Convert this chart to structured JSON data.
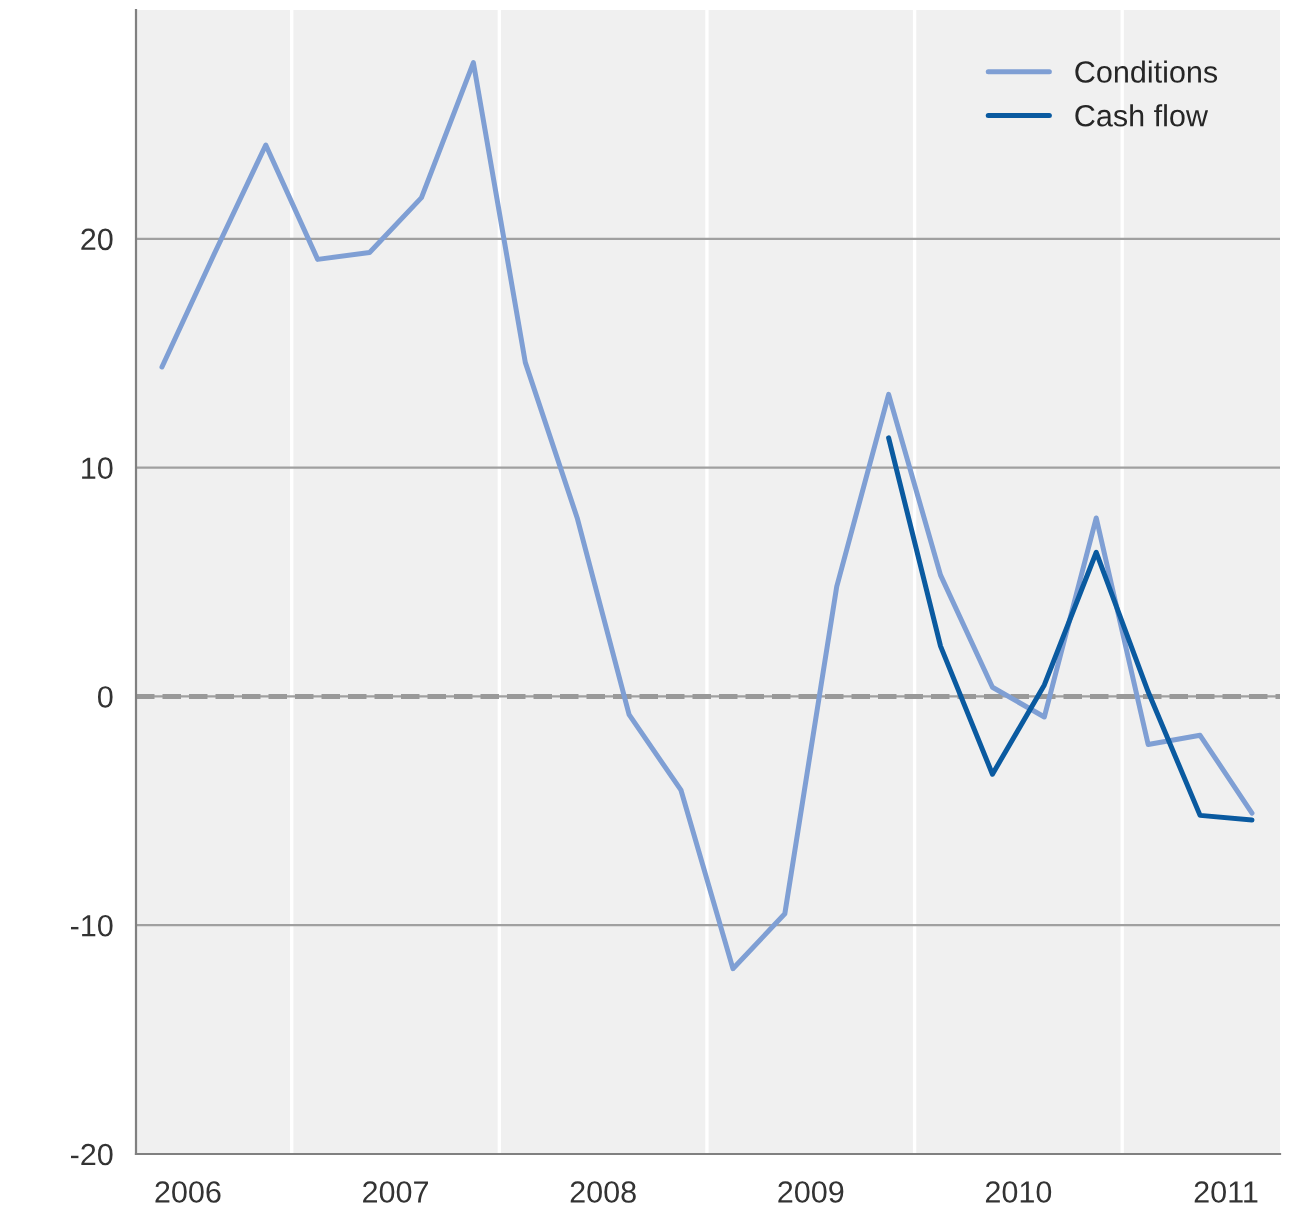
{
  "chart_data": {
    "type": "line",
    "x": [
      2006.375,
      2006.625,
      2006.875,
      2007.125,
      2007.375,
      2007.625,
      2007.875,
      2008.125,
      2008.375,
      2008.625,
      2008.875,
      2009.125,
      2009.375,
      2009.625,
      2009.875,
      2010.125,
      2010.375,
      2010.625,
      2010.875,
      2011.125,
      2011.375,
      2011.625
    ],
    "series": [
      {
        "name": "Conditions",
        "color": "#7f9fd4",
        "values": [
          14.4,
          19.3,
          24.1,
          19.1,
          19.4,
          21.8,
          27.7,
          14.6,
          7.8,
          -0.8,
          -4.1,
          -11.9,
          -9.5,
          4.8,
          13.2,
          5.3,
          0.4,
          -0.9,
          7.8,
          -2.1,
          -1.7,
          -5.1
        ]
      },
      {
        "name": "Cash flow",
        "color": "#0a5aa0",
        "values": [
          null,
          null,
          null,
          null,
          null,
          null,
          null,
          null,
          null,
          null,
          null,
          null,
          null,
          null,
          11.3,
          2.2,
          -3.4,
          0.5,
          6.3,
          0.2,
          -5.2,
          -5.4
        ]
      }
    ],
    "xlim": [
      2006.25,
      2011.76
    ],
    "xticks": [
      {
        "value": 2006.5,
        "label": "2006"
      },
      {
        "value": 2007,
        "label": null
      },
      {
        "value": 2007.5,
        "label": "2007"
      },
      {
        "value": 2008,
        "label": null
      },
      {
        "value": 2008.5,
        "label": "2008"
      },
      {
        "value": 2009,
        "label": null
      },
      {
        "value": 2009.5,
        "label": "2009"
      },
      {
        "value": 2010,
        "label": null
      },
      {
        "value": 2010.5,
        "label": "2010"
      },
      {
        "value": 2011,
        "label": null
      },
      {
        "value": 2011.5,
        "label": "2011"
      }
    ],
    "ylim": [
      -20,
      30
    ],
    "yticks": [
      -20,
      -10,
      0,
      10,
      20
    ],
    "ref_lines": [
      {
        "axis": "y",
        "value": 0,
        "color": "#999999",
        "line_style": "dashed"
      }
    ],
    "grid": true,
    "legend": "top right",
    "marker": "none",
    "line_style": "solid"
  }
}
